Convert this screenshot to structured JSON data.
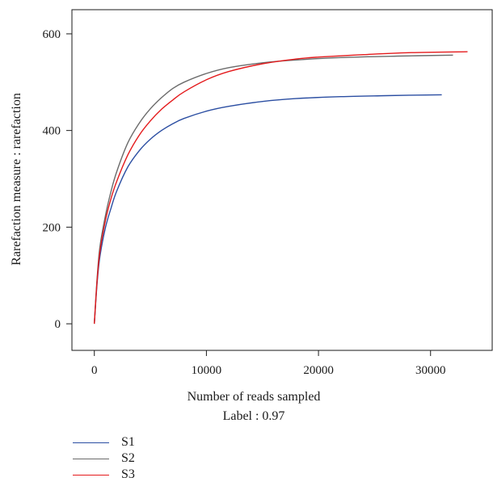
{
  "chart_data": {
    "type": "line",
    "title": "",
    "xlabel": "Number of reads sampled",
    "xlabel2": "Label : 0.97",
    "ylabel": "Rarefaction measure : rarefaction",
    "xlim": [
      -2000,
      35500
    ],
    "ylim": [
      -55,
      650
    ],
    "xticks": [
      0,
      10000,
      20000,
      30000
    ],
    "yticks": [
      0,
      200,
      400,
      600
    ],
    "grid": false,
    "legend_position": "bottom-left",
    "series": [
      {
        "name": "S1",
        "color": "#2b4ea2",
        "points": [
          [
            0,
            0
          ],
          [
            250,
            85
          ],
          [
            500,
            140
          ],
          [
            1000,
            200
          ],
          [
            1500,
            240
          ],
          [
            2000,
            275
          ],
          [
            3000,
            325
          ],
          [
            4000,
            358
          ],
          [
            5000,
            382
          ],
          [
            6000,
            400
          ],
          [
            7000,
            414
          ],
          [
            8000,
            425
          ],
          [
            10000,
            440
          ],
          [
            12000,
            450
          ],
          [
            15000,
            460
          ],
          [
            18000,
            466
          ],
          [
            22000,
            470
          ],
          [
            26000,
            472
          ],
          [
            31000,
            474
          ]
        ]
      },
      {
        "name": "S2",
        "color": "#6b6b6b",
        "points": [
          [
            0,
            0
          ],
          [
            250,
            95
          ],
          [
            500,
            160
          ],
          [
            1000,
            225
          ],
          [
            1500,
            275
          ],
          [
            2000,
            315
          ],
          [
            3000,
            375
          ],
          [
            4000,
            415
          ],
          [
            5000,
            445
          ],
          [
            6000,
            468
          ],
          [
            7000,
            487
          ],
          [
            8000,
            500
          ],
          [
            10000,
            518
          ],
          [
            12000,
            530
          ],
          [
            15000,
            540
          ],
          [
            18000,
            546
          ],
          [
            22000,
            551
          ],
          [
            27000,
            554
          ],
          [
            32000,
            556
          ]
        ]
      },
      {
        "name": "S3",
        "color": "#e41a1c",
        "points": [
          [
            0,
            0
          ],
          [
            250,
            90
          ],
          [
            500,
            150
          ],
          [
            1000,
            215
          ],
          [
            1500,
            260
          ],
          [
            2000,
            295
          ],
          [
            3000,
            350
          ],
          [
            4000,
            390
          ],
          [
            5000,
            420
          ],
          [
            6000,
            444
          ],
          [
            7000,
            463
          ],
          [
            8000,
            480
          ],
          [
            10000,
            505
          ],
          [
            12000,
            522
          ],
          [
            15000,
            538
          ],
          [
            18000,
            548
          ],
          [
            20000,
            552
          ],
          [
            24000,
            557
          ],
          [
            28000,
            561
          ],
          [
            33300,
            563
          ]
        ]
      }
    ]
  }
}
